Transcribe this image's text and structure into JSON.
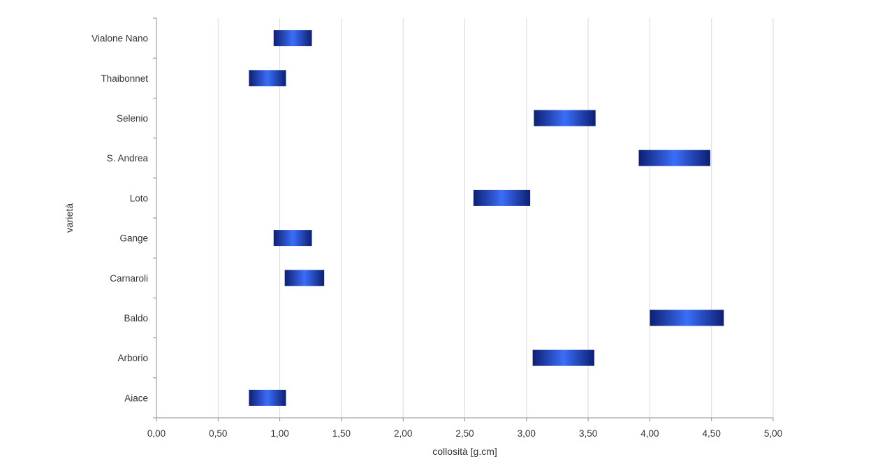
{
  "chart_data": {
    "type": "bar",
    "orientation": "horizontal-range",
    "title": "",
    "xlabel": "collosità [g.cm]",
    "ylabel": "varietà",
    "xlim": [
      0,
      5
    ],
    "x_ticks": [
      "0,00",
      "0,50",
      "1,00",
      "1,50",
      "2,00",
      "2,50",
      "3,00",
      "3,50",
      "4,00",
      "4,50",
      "5,00"
    ],
    "categories": [
      "Aiace",
      "Arborio",
      "Baldo",
      "Carnaroli",
      "Gange",
      "Loto",
      "S. Andrea",
      "Selenio",
      "Thaibonnet",
      "Vialone Nano"
    ],
    "ranges": [
      [
        0.75,
        1.05
      ],
      [
        3.05,
        3.55
      ],
      [
        4.0,
        4.6
      ],
      [
        1.04,
        1.36
      ],
      [
        0.95,
        1.26
      ],
      [
        2.57,
        3.03
      ],
      [
        3.91,
        4.49
      ],
      [
        3.06,
        3.56
      ],
      [
        0.75,
        1.05
      ],
      [
        0.95,
        1.26
      ]
    ],
    "grid": {
      "x_major": true,
      "y_major": false
    },
    "legend": "none",
    "colors": {
      "bar_center": "#3b6ef8",
      "bar_edge": "#0d1f72",
      "grid": "#d9d9d9",
      "axis": "#8c8c8c"
    }
  }
}
